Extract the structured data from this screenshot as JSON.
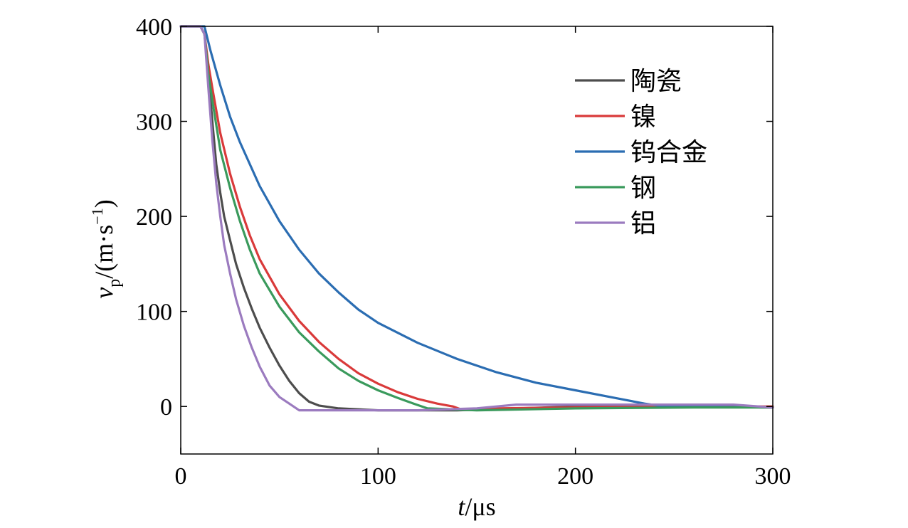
{
  "chart_data": {
    "type": "line",
    "xlim": [
      0,
      300
    ],
    "ylim": [
      -50,
      400
    ],
    "x_ticks": [
      "0",
      "100",
      "200",
      "300"
    ],
    "y_ticks": [
      "400",
      "300",
      "200",
      "100",
      "0"
    ],
    "x_tick_values": [
      0,
      100,
      200,
      300
    ],
    "y_tick_values": [
      400,
      300,
      200,
      100,
      0
    ],
    "xlabel": {
      "var": "t",
      "unit": "/μs"
    },
    "ylabel": {
      "var": "v",
      "sub": "p",
      "unit_pre": "/(m·s",
      "sup": "−1",
      "unit_post": ")"
    },
    "grid": false,
    "legend_position": "top-right",
    "series": [
      {
        "name": "陶瓷",
        "color": "#4d4d4d",
        "x": [
          0,
          10,
          12,
          14,
          16,
          18,
          20,
          22,
          25,
          28,
          32,
          36,
          40,
          45,
          50,
          55,
          60,
          65,
          70,
          80,
          100,
          140,
          200,
          260,
          300
        ],
        "y": [
          400,
          400,
          392,
          350,
          300,
          255,
          225,
          200,
          175,
          150,
          125,
          103,
          83,
          62,
          43,
          27,
          14,
          5,
          1,
          -2,
          -4,
          -4,
          0,
          0,
          -1
        ]
      },
      {
        "name": "镍",
        "color": "#d93a3a",
        "x": [
          0,
          10,
          12,
          14,
          16,
          20,
          25,
          30,
          35,
          40,
          50,
          60,
          70,
          80,
          90,
          100,
          110,
          120,
          130,
          138,
          142,
          160,
          200,
          260,
          300
        ],
        "y": [
          400,
          400,
          392,
          360,
          335,
          288,
          245,
          210,
          180,
          155,
          118,
          90,
          68,
          50,
          35,
          24,
          15,
          8,
          3,
          0,
          -3,
          -2,
          -1,
          0,
          0
        ]
      },
      {
        "name": "钨合金",
        "color": "#2b6db2",
        "x": [
          0,
          10,
          12,
          15,
          20,
          25,
          30,
          40,
          50,
          60,
          70,
          80,
          90,
          100,
          120,
          140,
          160,
          180,
          200,
          220,
          235,
          245,
          260,
          300
        ],
        "y": [
          400,
          400,
          400,
          375,
          338,
          305,
          278,
          232,
          195,
          165,
          140,
          120,
          102,
          88,
          67,
          50,
          36,
          25,
          17,
          9,
          3,
          0,
          0,
          -1
        ]
      },
      {
        "name": "钢",
        "color": "#3a9a5c",
        "x": [
          0,
          10,
          12,
          14,
          16,
          20,
          25,
          30,
          35,
          40,
          50,
          60,
          70,
          80,
          90,
          100,
          110,
          118,
          125,
          150,
          200,
          260,
          300
        ],
        "y": [
          400,
          400,
          392,
          350,
          322,
          270,
          230,
          195,
          165,
          140,
          105,
          78,
          58,
          40,
          27,
          17,
          9,
          3,
          -2,
          -4,
          -2,
          -1,
          -1
        ]
      },
      {
        "name": "铝",
        "color": "#9b7bbf",
        "x": [
          0,
          10,
          12,
          14,
          16,
          18,
          20,
          22,
          25,
          28,
          32,
          36,
          40,
          45,
          50,
          55,
          60,
          80,
          120,
          150,
          170,
          200,
          240,
          280,
          300
        ],
        "y": [
          400,
          400,
          392,
          335,
          280,
          235,
          200,
          170,
          140,
          113,
          85,
          62,
          42,
          22,
          10,
          3,
          -4,
          -4,
          -4,
          -2,
          2,
          2,
          2,
          2,
          -1
        ]
      }
    ]
  }
}
